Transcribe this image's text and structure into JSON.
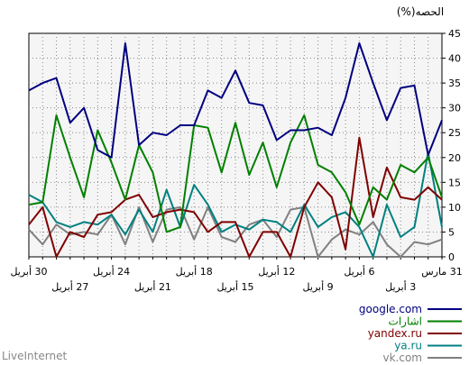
{
  "chart_data": {
    "type": "line",
    "unit_label": "الحصه(%)",
    "ylim": [
      0,
      45
    ],
    "y_ticks": [
      0,
      5,
      10,
      15,
      20,
      25,
      30,
      35,
      40,
      45
    ],
    "x_count": 31,
    "x_direction": "right-to-left",
    "x_tick_labels": [
      {
        "i": 0,
        "row": 1,
        "text": "31 مارس"
      },
      {
        "i": 3,
        "row": 2,
        "text": "3 أبريل"
      },
      {
        "i": 6,
        "row": 1,
        "text": "6 أبريل"
      },
      {
        "i": 9,
        "row": 2,
        "text": "9 أبريل"
      },
      {
        "i": 12,
        "row": 1,
        "text": "12 أبريل"
      },
      {
        "i": 15,
        "row": 2,
        "text": "15 أبريل"
      },
      {
        "i": 18,
        "row": 1,
        "text": "18 أبريل"
      },
      {
        "i": 21,
        "row": 2,
        "text": "21 أبريل"
      },
      {
        "i": 24,
        "row": 1,
        "text": "24 أبريل"
      },
      {
        "i": 27,
        "row": 2,
        "text": "27 أبريل"
      },
      {
        "i": 30,
        "row": 1,
        "text": "30 أبريل"
      }
    ],
    "grid": true,
    "legend_position": "bottom-right",
    "series": [
      {
        "name": "google.com",
        "color": "#000080",
        "values": [
          27.5,
          20.5,
          34.5,
          34,
          27.5,
          35,
          43,
          32,
          24.5,
          26,
          25.5,
          25.5,
          23.5,
          30.5,
          31,
          37.5,
          32,
          33.5,
          26.5,
          26.5,
          24.5,
          25,
          22.5,
          43,
          20,
          21.5,
          30,
          27,
          36,
          35,
          33.5
        ]
      },
      {
        "name": "اشارات",
        "color": "#008000",
        "values": [
          12,
          20,
          17,
          18.5,
          11.5,
          14,
          6.5,
          13,
          17,
          18.5,
          28.5,
          23,
          14,
          23,
          16.5,
          27,
          17,
          26,
          26.5,
          6,
          5,
          17,
          22.5,
          11.5,
          19,
          25.5,
          12,
          20,
          28.5,
          11,
          10.5
        ]
      },
      {
        "name": "yandex.ru",
        "color": "#800000",
        "values": [
          11.5,
          14,
          11.5,
          12,
          18,
          8,
          24,
          1.5,
          12,
          15,
          10,
          0,
          5,
          5,
          0,
          7,
          7,
          5,
          9,
          9.5,
          9,
          8,
          12.5,
          11.5,
          9,
          8.5,
          4,
          5,
          0,
          10,
          6.5
        ]
      },
      {
        "name": "ya.ru",
        "color": "#008080",
        "values": [
          6,
          21,
          6,
          4,
          10.5,
          0,
          6,
          9,
          8,
          6,
          10.5,
          5,
          7,
          7.5,
          5.5,
          6.5,
          5,
          10.5,
          14.5,
          6,
          13.5,
          5,
          9.5,
          4.5,
          8.5,
          6.5,
          7,
          6,
          7,
          11,
          12.5
        ]
      },
      {
        "name": "vk.com",
        "color": "#808080",
        "values": [
          3.5,
          2.5,
          3,
          0,
          2.5,
          7,
          4.5,
          5.5,
          3.5,
          0,
          10,
          9.5,
          4,
          7.5,
          6.5,
          3,
          4,
          10,
          3.5,
          10,
          9.5,
          3,
          10,
          2.5,
          8.5,
          4.5,
          5,
          4.5,
          6.5,
          2.5,
          5.5
        ]
      }
    ]
  },
  "legend": [
    {
      "label": "google.com",
      "color": "#000080"
    },
    {
      "label": "اشارات",
      "color": "#008000"
    },
    {
      "label": "yandex.ru",
      "color": "#800000"
    },
    {
      "label": "ya.ru",
      "color": "#008080"
    },
    {
      "label": "vk.com",
      "color": "#808080"
    }
  ],
  "footer": {
    "brand": "LiveInternet"
  }
}
